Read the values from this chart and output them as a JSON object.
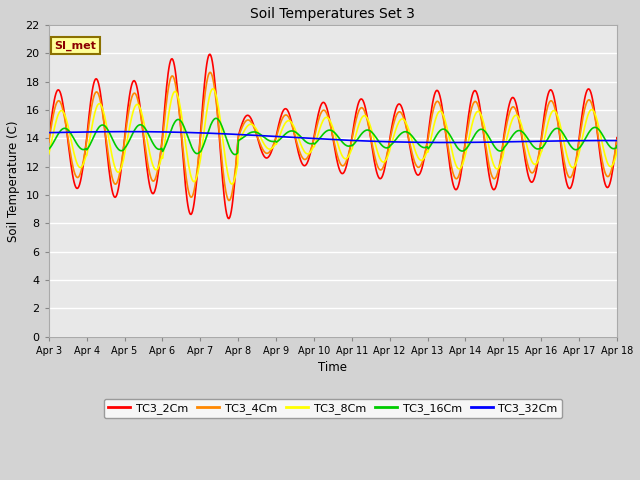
{
  "title": "Soil Temperatures Set 3",
  "xlabel": "Time",
  "ylabel": "Soil Temperature (C)",
  "ylim": [
    0,
    22
  ],
  "yticks": [
    0,
    2,
    4,
    6,
    8,
    10,
    12,
    14,
    16,
    18,
    20,
    22
  ],
  "xtick_labels": [
    "Apr 3",
    "Apr 4",
    "Apr 5",
    "Apr 6",
    "Apr 7",
    "Apr 8",
    "Apr 9",
    "Apr 10",
    "Apr 11",
    "Apr 12",
    "Apr 13",
    "Apr 14",
    "Apr 15",
    "Apr 16",
    "Apr 17",
    "Apr 18"
  ],
  "series_colors": [
    "#ff0000",
    "#ff8800",
    "#ffff00",
    "#00cc00",
    "#0000ff"
  ],
  "series_names": [
    "TC3_2Cm",
    "TC3_4Cm",
    "TC3_8Cm",
    "TC3_16Cm",
    "TC3_32Cm"
  ],
  "line_width": 1.2,
  "background_color": "#d3d3d3",
  "plot_bg_color": "#e8e8e8",
  "legend_label": "SI_met",
  "legend_box_color": "#ffff99",
  "legend_border_color": "#8b7000",
  "fig_width": 6.4,
  "fig_height": 4.8,
  "dpi": 100
}
